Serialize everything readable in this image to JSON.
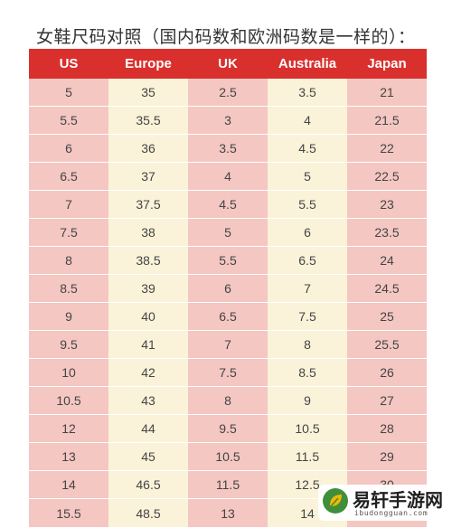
{
  "title": "女鞋尺码对照（国内码数和欧洲码数是一样的）：",
  "columns": [
    "US",
    "Europe",
    "UK",
    "Australia",
    "Japan"
  ],
  "rows": [
    [
      "5",
      "35",
      "2.5",
      "3.5",
      "21"
    ],
    [
      "5.5",
      "35.5",
      "3",
      "4",
      "21.5"
    ],
    [
      "6",
      "36",
      "3.5",
      "4.5",
      "22"
    ],
    [
      "6.5",
      "37",
      "4",
      "5",
      "22.5"
    ],
    [
      "7",
      "37.5",
      "4.5",
      "5.5",
      "23"
    ],
    [
      "7.5",
      "38",
      "5",
      "6",
      "23.5"
    ],
    [
      "8",
      "38.5",
      "5.5",
      "6.5",
      "24"
    ],
    [
      "8.5",
      "39",
      "6",
      "7",
      "24.5"
    ],
    [
      "9",
      "40",
      "6.5",
      "7.5",
      "25"
    ],
    [
      "9.5",
      "41",
      "7",
      "8",
      "25.5"
    ],
    [
      "10",
      "42",
      "7.5",
      "8.5",
      "26"
    ],
    [
      "10.5",
      "43",
      "8",
      "9",
      "27"
    ],
    [
      "12",
      "44",
      "9.5",
      "10.5",
      "28"
    ],
    [
      "13",
      "45",
      "10.5",
      "11.5",
      "29"
    ],
    [
      "14",
      "46.5",
      "11.5",
      "12.5",
      "30"
    ],
    [
      "15.5",
      "48.5",
      "13",
      "14",
      ""
    ]
  ],
  "watermark": {
    "name": "易轩手游网",
    "url": "ibudongguan.com",
    "icon": "leaf-logo-icon"
  },
  "colors": {
    "header_bg": "#d9302e",
    "header_text": "#ffffff",
    "pink_cell": "#f4c7c2",
    "cream_cell": "#fbf3d9"
  }
}
